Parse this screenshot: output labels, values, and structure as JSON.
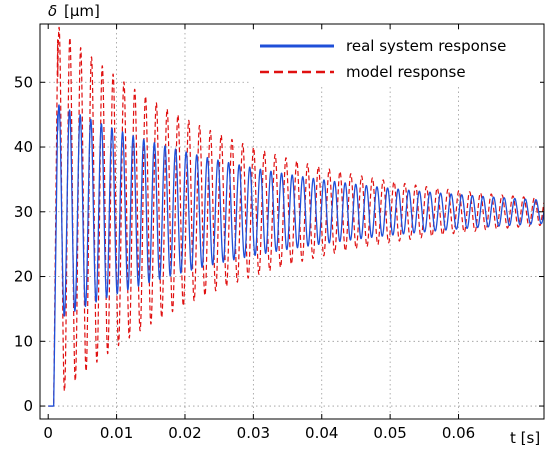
{
  "chart_data": {
    "type": "line",
    "xlabel": "t [s]",
    "ylabel_symbol": "δ",
    "ylabel_unit": "[µm]",
    "xlim": [
      -0.0012,
      0.0725
    ],
    "ylim": [
      -2,
      59
    ],
    "xticks": [
      0,
      0.01,
      0.02,
      0.03,
      0.04,
      0.05,
      0.06
    ],
    "xtick_labels": [
      "0",
      "0.01",
      "0.02",
      "0.03",
      "0.04",
      "0.05",
      "0.06"
    ],
    "yticks": [
      0,
      10,
      20,
      30,
      40,
      50
    ],
    "ytick_labels": [
      "0",
      "10",
      "20",
      "30",
      "40",
      "50"
    ],
    "grid": true,
    "legend_position": "top-right",
    "series": [
      {
        "name": "real system response",
        "color": "#1f4fd8",
        "style": "solid",
        "final_value": 30,
        "first_peak": 46.5,
        "oscillation_period_s": 0.00155,
        "decay_time_constant_s": 0.032,
        "start_time_s": 0.0008
      },
      {
        "name": "model response",
        "color": "#e01010",
        "style": "dashed",
        "final_value": 30,
        "first_peak": 58.5,
        "oscillation_period_s": 0.00158,
        "decay_time_constant_s": 0.027,
        "start_time_s": 0.0008
      }
    ]
  }
}
